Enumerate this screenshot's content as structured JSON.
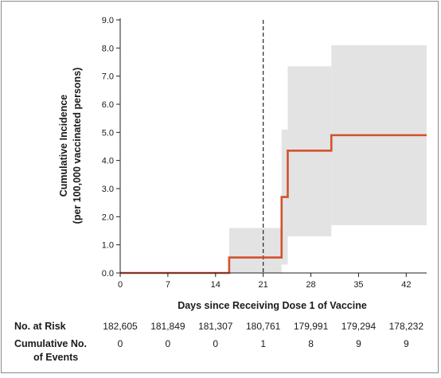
{
  "chart_data": {
    "type": "line",
    "xlabel": "Days since Receiving Dose 1 of Vaccine",
    "ylabel_line1": "Cumulative Incidence",
    "ylabel_line2": "(per 100,000 vaccinated persons)",
    "xlim": [
      0,
      45
    ],
    "ylim": [
      0,
      9
    ],
    "x_ticks": [
      0,
      7,
      14,
      21,
      28,
      35,
      42
    ],
    "y_ticks": [
      0.0,
      1.0,
      2.0,
      3.0,
      4.0,
      5.0,
      6.0,
      7.0,
      8.0,
      9.0
    ],
    "y_tick_labels": [
      "0.0",
      "1.0",
      "2.0",
      "3.0",
      "4.0",
      "5.0",
      "6.0",
      "7.0",
      "8.0",
      "9.0"
    ],
    "reference_line_x": 21,
    "series": [
      {
        "color": "#d2522e",
        "x": [
          0,
          16,
          16,
          23.7,
          23.7,
          24.6,
          24.6,
          31,
          31,
          45
        ],
        "y": [
          0,
          0,
          0.55,
          0.55,
          2.7,
          2.7,
          4.35,
          4.35,
          4.9,
          4.9
        ]
      }
    ],
    "confidence_band": {
      "color": "#e3e3e3",
      "x": [
        16,
        23.7,
        24.6,
        31,
        45
      ],
      "lower": [
        0.0,
        0.3,
        1.3,
        1.7,
        1.7
      ],
      "upper": [
        1.6,
        5.1,
        7.35,
        8.1,
        8.1
      ]
    }
  },
  "risk_table": {
    "at_risk_label": "No. at Risk",
    "events_label_line1": "Cumulative No.",
    "events_label_line2": "of Events",
    "at_risk": [
      "182,605",
      "181,849",
      "181,307",
      "180,761",
      "179,991",
      "179,294",
      "178,232"
    ],
    "events": [
      "0",
      "0",
      "0",
      "1",
      "8",
      "9",
      "9"
    ]
  }
}
